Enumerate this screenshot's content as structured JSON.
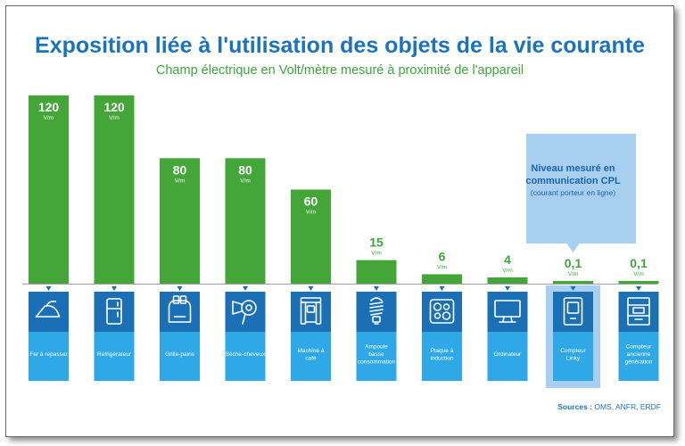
{
  "title": "Exposition liée à l'utilisation des objets de la vie courante",
  "subtitle": "Champ électrique en Volt/mètre mesuré à proximité de l'appareil",
  "source": {
    "label": "Sources :",
    "text": "OMS, ANFR, ERDF"
  },
  "callout": {
    "line1": "Niveau mesuré en",
    "line2": "communication CPL",
    "line3": "(courant porteur en ligne)"
  },
  "colors": {
    "bar": "#44a538",
    "label_value": "#3ea63b",
    "tile_top": "#1b6fb5",
    "tile_bottom": "#2ea8e6",
    "callout_bg": "#a9cff0",
    "title": "#1b73b9"
  },
  "chart_data": {
    "type": "bar",
    "title": "Exposition liée à l'utilisation des objets de la vie courante",
    "subtitle": "Champ électrique en Volt/mètre mesuré à proximité de l'appareil",
    "unit": "V/m",
    "ylim": [
      0,
      120
    ],
    "categories": [
      "Fer à repasser",
      "Réfrigérateur",
      "Grille-pains",
      "Sèche-cheveux",
      "Machine à café",
      "Ampoule basse consommation",
      "Plaque à induction",
      "Ordinateur",
      "Compteur Linky",
      "Compteur ancienne génération"
    ],
    "values": [
      120,
      120,
      80,
      80,
      60,
      15,
      6,
      4,
      0.1,
      0.1
    ],
    "value_labels": [
      "120",
      "120",
      "80",
      "80",
      "60",
      "15",
      "6",
      "4",
      "0,1",
      "0,1"
    ],
    "icons": [
      "iron-icon",
      "fridge-icon",
      "toaster-icon",
      "hair-dryer-icon",
      "coffee-machine-icon",
      "bulb-icon",
      "induction-hob-icon",
      "computer-icon",
      "linky-meter-icon",
      "old-meter-icon"
    ],
    "highlight": "Compteur Linky",
    "grid": false,
    "legend": "none"
  }
}
